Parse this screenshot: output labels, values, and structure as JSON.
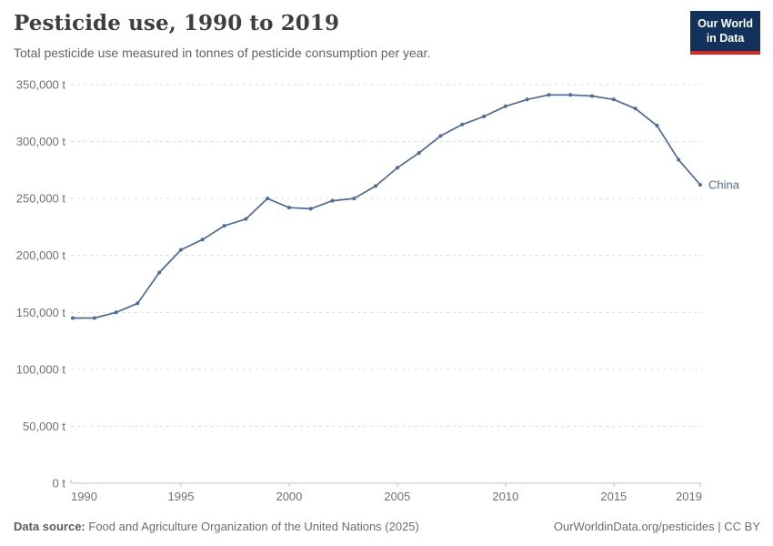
{
  "header": {
    "title": "Pesticide use, 1990 to 2019",
    "subtitle": "Total pesticide use measured in tonnes of pesticide consumption per year."
  },
  "logo": {
    "line1": "Our World",
    "line2": "in Data",
    "bg_color": "#12315b",
    "bar_color": "#d42b20"
  },
  "footer": {
    "source_label": "Data source:",
    "source_text": "Food and Agriculture Organization of the United Nations (2025)",
    "credit": "OurWorldinData.org/pesticides | CC BY"
  },
  "colors": {
    "series_line": "#4c6a9c",
    "grid": "#dcdcdc",
    "axis": "#c2c2c2",
    "tick_text": "#6e7072",
    "series_label": "#4c6a9c"
  },
  "chart_data": {
    "type": "line",
    "title": "Pesticide use, 1990 to 2019",
    "subtitle": "Total pesticide use measured in tonnes of pesticide consumption per year.",
    "xlabel": "",
    "ylabel": "",
    "unit": "t",
    "grid": "horizontal-dashed",
    "legend_position": "end-of-line-label",
    "xlim": [
      1990,
      2019
    ],
    "ylim": [
      0,
      350000
    ],
    "x": [
      1990,
      1991,
      1992,
      1993,
      1994,
      1995,
      1996,
      1997,
      1998,
      1999,
      2000,
      2001,
      2002,
      2003,
      2004,
      2005,
      2006,
      2007,
      2008,
      2009,
      2010,
      2011,
      2012,
      2013,
      2014,
      2015,
      2016,
      2017,
      2018,
      2019
    ],
    "series": [
      {
        "name": "China",
        "end_label": "China",
        "values": [
          145000,
          145000,
          150000,
          158000,
          185000,
          205000,
          214000,
          226000,
          232000,
          250000,
          242000,
          241000,
          248000,
          250000,
          261000,
          277000,
          290000,
          305000,
          315000,
          322000,
          331000,
          337000,
          341000,
          341000,
          340000,
          337000,
          329000,
          314000,
          284000,
          262000
        ]
      }
    ],
    "yticks": [
      {
        "value": 0,
        "label": "0 t"
      },
      {
        "value": 50000,
        "label": "50,000 t"
      },
      {
        "value": 100000,
        "label": "100,000 t"
      },
      {
        "value": 150000,
        "label": "150,000 t"
      },
      {
        "value": 200000,
        "label": "200,000 t"
      },
      {
        "value": 250000,
        "label": "250,000 t"
      },
      {
        "value": 300000,
        "label": "300,000 t"
      },
      {
        "value": 350000,
        "label": "350,000 t"
      }
    ],
    "xticks": [
      {
        "value": 1990,
        "label": "1990"
      },
      {
        "value": 1995,
        "label": "1995"
      },
      {
        "value": 2000,
        "label": "2000"
      },
      {
        "value": 2005,
        "label": "2005"
      },
      {
        "value": 2010,
        "label": "2010"
      },
      {
        "value": 2015,
        "label": "2015"
      },
      {
        "value": 2019,
        "label": "2019"
      }
    ]
  }
}
